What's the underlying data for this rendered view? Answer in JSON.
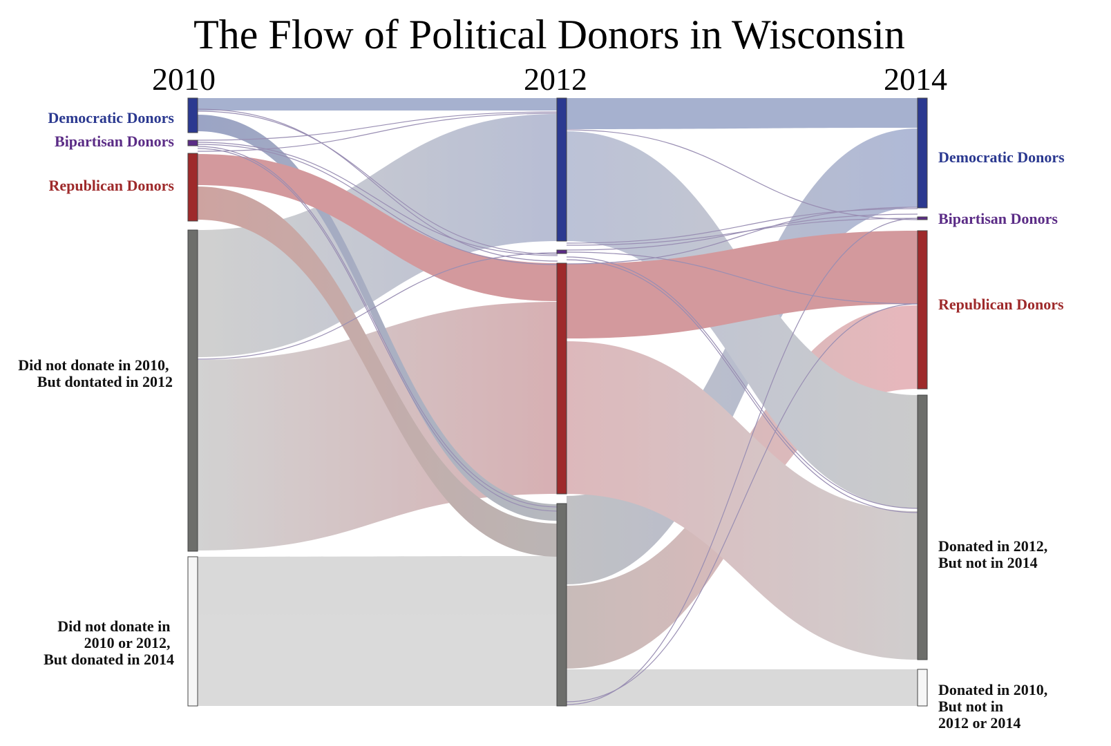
{
  "title": "The Flow of Political Donors in Wisconsin",
  "years": [
    "2010",
    "2012",
    "2014"
  ],
  "colors": {
    "dem": "#2b3990",
    "bip": "#5b2c86",
    "rep": "#9e2a2b",
    "non": "#6d6e6b",
    "none_fill": "#f6f6f6",
    "dem_flow": "#8e9cc2",
    "rep_flow": "#c77d82",
    "non_flow": "#b7b7b7",
    "label_dark": "#111111"
  },
  "nodes": {
    "y2010": [
      {
        "key": "dem",
        "label": [
          "Democratic Donors"
        ]
      },
      {
        "key": "bip",
        "label": [
          "Bipartisan Donors"
        ]
      },
      {
        "key": "rep",
        "label": [
          "Republican Donors"
        ]
      },
      {
        "key": "new12",
        "label": [
          "Did not donate in 2010,",
          "But dontated in 2012"
        ]
      },
      {
        "key": "new14",
        "label": [
          "Did not donate in",
          "2010 or 2012,",
          "But donated in 2014"
        ]
      }
    ],
    "y2012": [
      {
        "key": "dem"
      },
      {
        "key": "bip"
      },
      {
        "key": "rep"
      },
      {
        "key": "non"
      }
    ],
    "y2014": [
      {
        "key": "dem",
        "label": [
          "Democratic Donors"
        ]
      },
      {
        "key": "bip",
        "label": [
          "Bipartisan Donors"
        ]
      },
      {
        "key": "rep",
        "label": [
          "Republican Donors"
        ]
      },
      {
        "key": "drop14",
        "label": [
          "Donated in 2012,",
          "But not in 2014"
        ]
      },
      {
        "key": "drop12",
        "label": [
          "Donated in 2010,",
          "But not in",
          "2012 or 2014"
        ]
      }
    ]
  }
}
